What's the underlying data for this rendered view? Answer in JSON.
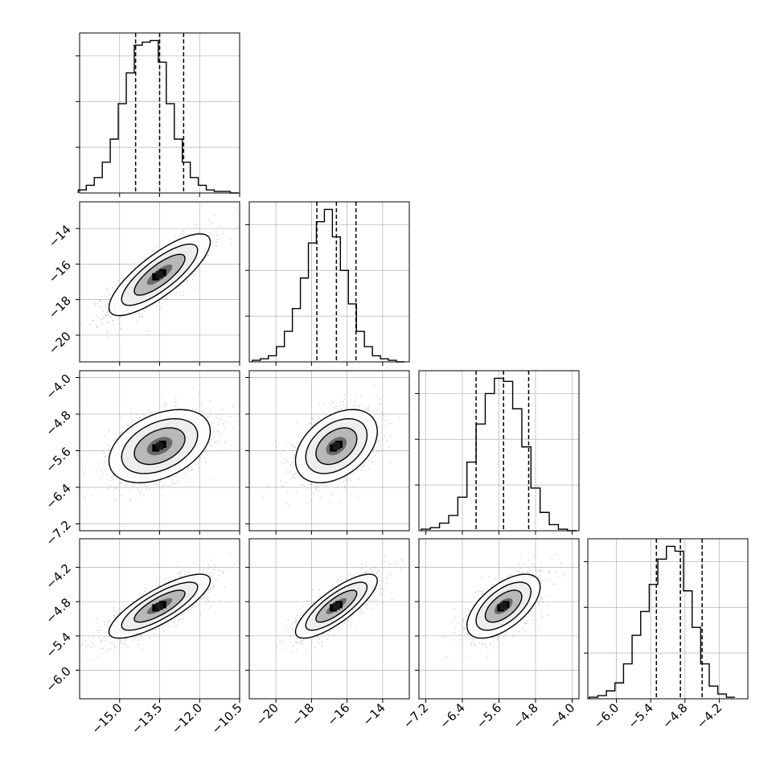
{
  "chart_data": {
    "type": "corner",
    "parameters": [
      {
        "xlim": [
          -16.5,
          -10.5
        ],
        "xticks": [
          "−15.0",
          "−13.5",
          "−12.0",
          "−10.5"
        ],
        "xtick_values": [
          -15.0,
          -13.5,
          -12.0,
          -10.5
        ],
        "ylim": [
          -21.5,
          -12.5
        ],
        "yticks": [
          "−14",
          "−16",
          "−18",
          "−20"
        ],
        "ytick_values": [
          -14,
          -16,
          -18,
          -20
        ]
      },
      {
        "xlim": [
          -21.5,
          -12.5
        ],
        "xticks": [
          "−20",
          "−18",
          "−16",
          "−14"
        ],
        "xtick_values": [
          -20,
          -18,
          -16,
          -14
        ],
        "ylim": [
          -7.35,
          -3.85
        ],
        "yticks": [
          "−4.0",
          "−4.8",
          "−5.6",
          "−6.4",
          "−7.2"
        ],
        "ytick_values": [
          -4.0,
          -4.8,
          -5.6,
          -6.4,
          -7.2
        ]
      },
      {
        "xlim": [
          -7.35,
          -3.85
        ],
        "xticks": [
          "−7.2",
          "−6.4",
          "−5.6",
          "−4.8",
          "−4.0"
        ],
        "xtick_values": [
          -7.2,
          -6.4,
          -5.6,
          -4.8,
          -4.0
        ],
        "ylim": [
          -6.5,
          -3.7
        ],
        "yticks": [
          "−4.2",
          "−4.8",
          "−5.4",
          "−6.0"
        ],
        "ytick_values": [
          -4.2,
          -4.8,
          -5.4,
          -6.0
        ]
      },
      {
        "xlim": [
          -6.5,
          -3.7
        ],
        "xticks": [
          "−6.0",
          "−5.4",
          "−4.8",
          "−4.2"
        ],
        "xtick_values": [
          -6.0,
          -5.4,
          -4.8,
          -4.2
        ]
      }
    ],
    "marginals": [
      {
        "bins": [
          -16.4,
          -16.1,
          -15.8,
          -15.5,
          -15.2,
          -14.9,
          -14.6,
          -14.3,
          -14.0,
          -13.7,
          -13.4,
          -13.1,
          -12.8,
          -12.5,
          -12.2,
          -11.9,
          -11.6,
          -11.3,
          -11.0,
          -10.7
        ],
        "counts": [
          2,
          5,
          10,
          20,
          35,
          58,
          78,
          96,
          98,
          99,
          85,
          58,
          35,
          20,
          10,
          5,
          2,
          1,
          1,
          0
        ],
        "quantiles": [
          -14.4,
          -13.5,
          -12.6
        ]
      },
      {
        "bins": [
          -21.1,
          -20.65,
          -20.2,
          -19.75,
          -19.3,
          -18.85,
          -18.4,
          -17.95,
          -17.5,
          -17.05,
          -16.6,
          -16.15,
          -15.7,
          -15.25,
          -14.8,
          -14.35,
          -13.9,
          -13.45,
          -13.0
        ],
        "counts": [
          1,
          2,
          4,
          10,
          20,
          35,
          55,
          78,
          92,
          100,
          82,
          60,
          38,
          20,
          10,
          4,
          2,
          1,
          0
        ],
        "quantiles": [
          -17.7,
          -16.6,
          -15.5
        ]
      },
      {
        "bins": [
          -7.2,
          -7.0,
          -6.8,
          -6.6,
          -6.4,
          -6.2,
          -6.0,
          -5.8,
          -5.6,
          -5.4,
          -5.2,
          -5.0,
          -4.8,
          -4.6,
          -4.4,
          -4.2,
          -4.0
        ],
        "counts": [
          1,
          2,
          5,
          10,
          22,
          45,
          70,
          90,
          100,
          98,
          80,
          55,
          28,
          12,
          4,
          1,
          0
        ],
        "quantiles": [
          -6.1,
          -5.5,
          -4.95
        ]
      },
      {
        "bins": [
          -6.4,
          -6.25,
          -6.1,
          -5.95,
          -5.8,
          -5.65,
          -5.5,
          -5.35,
          -5.2,
          -5.05,
          -4.9,
          -4.75,
          -4.6,
          -4.45,
          -4.3,
          -4.15,
          -4.0
        ],
        "counts": [
          1,
          2,
          5,
          10,
          22,
          40,
          55,
          72,
          88,
          96,
          93,
          68,
          45,
          22,
          8,
          3,
          1
        ],
        "quantiles": [
          -5.3,
          -4.88,
          -4.5
        ]
      }
    ],
    "correlations": [
      {
        "x": 0,
        "y": 1,
        "mean": [
          -13.5,
          -16.6
        ],
        "sd": [
          0.95,
          1.15
        ],
        "rho": 0.8
      },
      {
        "x": 0,
        "y": 2,
        "mean": [
          -13.5,
          -5.5
        ],
        "sd": [
          0.95,
          0.4
        ],
        "rho": 0.4
      },
      {
        "x": 1,
        "y": 2,
        "mean": [
          -16.6,
          -5.5
        ],
        "sd": [
          1.15,
          0.4
        ],
        "rho": 0.4
      },
      {
        "x": 0,
        "y": 3,
        "mean": [
          -13.5,
          -4.88
        ],
        "sd": [
          0.95,
          0.28
        ],
        "rho": 0.8
      },
      {
        "x": 1,
        "y": 3,
        "mean": [
          -16.6,
          -4.88
        ],
        "sd": [
          1.15,
          0.28
        ],
        "rho": 0.8
      },
      {
        "x": 2,
        "y": 3,
        "mean": [
          -5.5,
          -4.88
        ],
        "sd": [
          0.4,
          0.28
        ],
        "rho": 0.6
      }
    ],
    "contour_levels_sigma": [
      0.5,
      1.0,
      1.5,
      2.0
    ],
    "grid": true,
    "colors": {
      "line": "#000000",
      "grid": "#b0b0b0",
      "points": "#8c8c8c",
      "frame": "#000000"
    }
  }
}
